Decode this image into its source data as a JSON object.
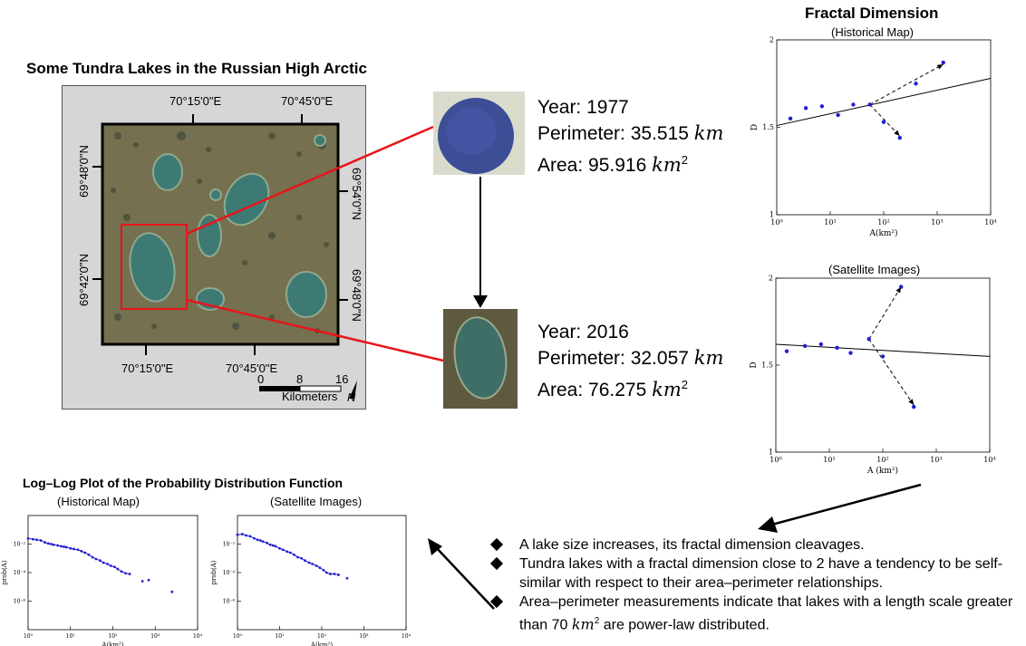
{
  "map": {
    "title": "Some Tundra Lakes in the Russian High Arctic",
    "lon_top_1": "70°15'0\"E",
    "lon_top_2": "70°45'0\"E",
    "lon_bottom_1": "70°15'0\"E",
    "lon_bottom_2": "70°45'0\"E",
    "lat_left_1": "69°48'0\"N",
    "lat_left_2": "69°42'0\"N",
    "lat_right_1": "69°54'0\"N",
    "lat_right_2": "69°48'0\"N",
    "scale_0": "0",
    "scale_8": "8",
    "scale_16": "16",
    "scale_unit": "Kilometers",
    "north": "N"
  },
  "lake_1977": {
    "year": "Year: 1977",
    "perimeter_label": "Perimeter: 35.515",
    "perimeter_unit": "km",
    "area_label": "Area: 95.916",
    "area_unit": "km",
    "area_exp": "2"
  },
  "lake_2016": {
    "year": "Year: 2016",
    "perimeter_label": "Perimeter: 32.057",
    "perimeter_unit": "km",
    "area_label": "Area: 76.275",
    "area_unit": "km",
    "area_exp": "2"
  },
  "fractal": {
    "title": "Fractal Dimension",
    "historical_subtitle": "(Historical Map)",
    "satellite_subtitle": "(Satellite Images)"
  },
  "pdf": {
    "title": "Log–Log Plot of the Probability Distribution Function",
    "historical_subtitle": "(Historical Map)",
    "satellite_subtitle": "(Satellite Images)"
  },
  "bullets": [
    "A lake size increases, its fractal dimension cleavages.",
    "Tundra lakes with a fractal dimension close to 2 have a tendency to be self-similar with respect to their area–perimeter relationships.",
    "Area–perimeter measurements indicate that lakes with a length scale greater than 70 "
  ],
  "bullet_3_unit": "km",
  "bullet_3_exp": "2",
  "bullet_3_tail": " are power-law distributed.",
  "chart_data": [
    {
      "type": "scatter",
      "subtitle": "(Historical Map)",
      "xlabel": "A(km²)",
      "ylabel": "D",
      "xscale": "log",
      "xlim": [
        1,
        10000
      ],
      "ylim": [
        1,
        2
      ],
      "x_ticks": [
        "10⁰",
        "10¹",
        "10²",
        "10³",
        "10⁴"
      ],
      "y_ticks": [
        "1",
        "1.5",
        "2"
      ],
      "points": [
        [
          1.8,
          1.55
        ],
        [
          3.5,
          1.61
        ],
        [
          7,
          1.62
        ],
        [
          14,
          1.57
        ],
        [
          27,
          1.63
        ],
        [
          55,
          1.63
        ],
        [
          100,
          1.53
        ],
        [
          200,
          1.44
        ],
        [
          400,
          1.75
        ],
        [
          1300,
          1.87
        ]
      ],
      "fit_line": [
        [
          1,
          1.51
        ],
        [
          10000,
          1.78
        ]
      ],
      "arrows": [
        [
          [
            55,
            1.63
          ],
          [
            1300,
            1.86
          ]
        ],
        [
          [
            55,
            1.63
          ],
          [
            200,
            1.45
          ]
        ]
      ]
    },
    {
      "type": "scatter",
      "subtitle": "(Satellite Images)",
      "xlabel": "A (km²)",
      "ylabel": "D",
      "xscale": "log",
      "xlim": [
        1,
        10000
      ],
      "ylim": [
        1,
        2
      ],
      "x_ticks": [
        "10⁰",
        "10¹",
        "10²",
        "10³",
        "10⁴"
      ],
      "y_ticks": [
        "1",
        "1.5",
        "2"
      ],
      "points": [
        [
          1.6,
          1.58
        ],
        [
          3.5,
          1.61
        ],
        [
          7,
          1.62
        ],
        [
          14,
          1.6
        ],
        [
          25,
          1.57
        ],
        [
          55,
          1.65
        ],
        [
          100,
          1.55
        ],
        [
          220,
          1.95
        ],
        [
          380,
          1.26
        ]
      ],
      "fit_line": [
        [
          1,
          1.62
        ],
        [
          10000,
          1.55
        ]
      ],
      "arrows": [
        [
          [
            55,
            1.65
          ],
          [
            220,
            1.95
          ]
        ],
        [
          [
            55,
            1.65
          ],
          [
            380,
            1.27
          ]
        ]
      ]
    },
    {
      "type": "scatter",
      "subtitle": "(Historical Map)",
      "xlabel": "A(km²)",
      "ylabel": "prob(A)",
      "xscale": "log",
      "yscale": "log",
      "xlim": [
        1,
        10000
      ],
      "ylim": [
        1e-08,
        1
      ],
      "x_ticks": [
        "10⁰",
        "10¹",
        "10²",
        "10³",
        "10⁴"
      ],
      "y_ticks": [
        "10⁻²",
        "10⁻⁴",
        "10⁻⁶"
      ],
      "points": [
        [
          1,
          0.025
        ],
        [
          1.3,
          0.022
        ],
        [
          1.6,
          0.02
        ],
        [
          2,
          0.018
        ],
        [
          2.5,
          0.013
        ],
        [
          3,
          0.011
        ],
        [
          3.5,
          0.01
        ],
        [
          4,
          0.009
        ],
        [
          5,
          0.008
        ],
        [
          6,
          0.007
        ],
        [
          7,
          0.0065
        ],
        [
          8,
          0.006
        ],
        [
          10,
          0.005
        ],
        [
          12,
          0.0045
        ],
        [
          15,
          0.004
        ],
        [
          18,
          0.0032
        ],
        [
          22,
          0.0025
        ],
        [
          27,
          0.0018
        ],
        [
          33,
          0.0012
        ],
        [
          40,
          0.0009
        ],
        [
          50,
          0.0007
        ],
        [
          60,
          0.0005
        ],
        [
          75,
          0.0004
        ],
        [
          90,
          0.0003
        ],
        [
          110,
          0.00025
        ],
        [
          130,
          0.00018
        ],
        [
          160,
          0.00012
        ],
        [
          200,
          9e-05
        ],
        [
          250,
          8e-05
        ],
        [
          500,
          2.5e-05
        ],
        [
          700,
          3e-05
        ],
        [
          2500,
          4.5e-06
        ]
      ]
    },
    {
      "type": "scatter",
      "subtitle": "(Satellite Images)",
      "xlabel": "A(km²)",
      "ylabel": "prob(A)",
      "xscale": "log",
      "yscale": "log",
      "xlim": [
        1,
        10000
      ],
      "ylim": [
        1e-08,
        1
      ],
      "x_ticks": [
        "10⁰",
        "10¹",
        "10²",
        "10³",
        "10⁴"
      ],
      "y_ticks": [
        "10⁻²",
        "10⁻⁴",
        "10⁻⁶"
      ],
      "points": [
        [
          1,
          0.045
        ],
        [
          1.3,
          0.05
        ],
        [
          1.6,
          0.04
        ],
        [
          2,
          0.035
        ],
        [
          2.5,
          0.025
        ],
        [
          3,
          0.02
        ],
        [
          3.5,
          0.018
        ],
        [
          4,
          0.015
        ],
        [
          5,
          0.012
        ],
        [
          6,
          0.009
        ],
        [
          7,
          0.008
        ],
        [
          8,
          0.007
        ],
        [
          10,
          0.005
        ],
        [
          12,
          0.004
        ],
        [
          15,
          0.003
        ],
        [
          18,
          0.0025
        ],
        [
          22,
          0.0018
        ],
        [
          27,
          0.0012
        ],
        [
          33,
          0.001
        ],
        [
          40,
          0.0007
        ],
        [
          50,
          0.0005
        ],
        [
          60,
          0.0004
        ],
        [
          75,
          0.0003
        ],
        [
          90,
          0.00022
        ],
        [
          110,
          0.00015
        ],
        [
          130,
          0.0001
        ],
        [
          160,
          8e-05
        ],
        [
          200,
          8e-05
        ],
        [
          250,
          7e-05
        ],
        [
          400,
          4e-05
        ]
      ]
    }
  ]
}
